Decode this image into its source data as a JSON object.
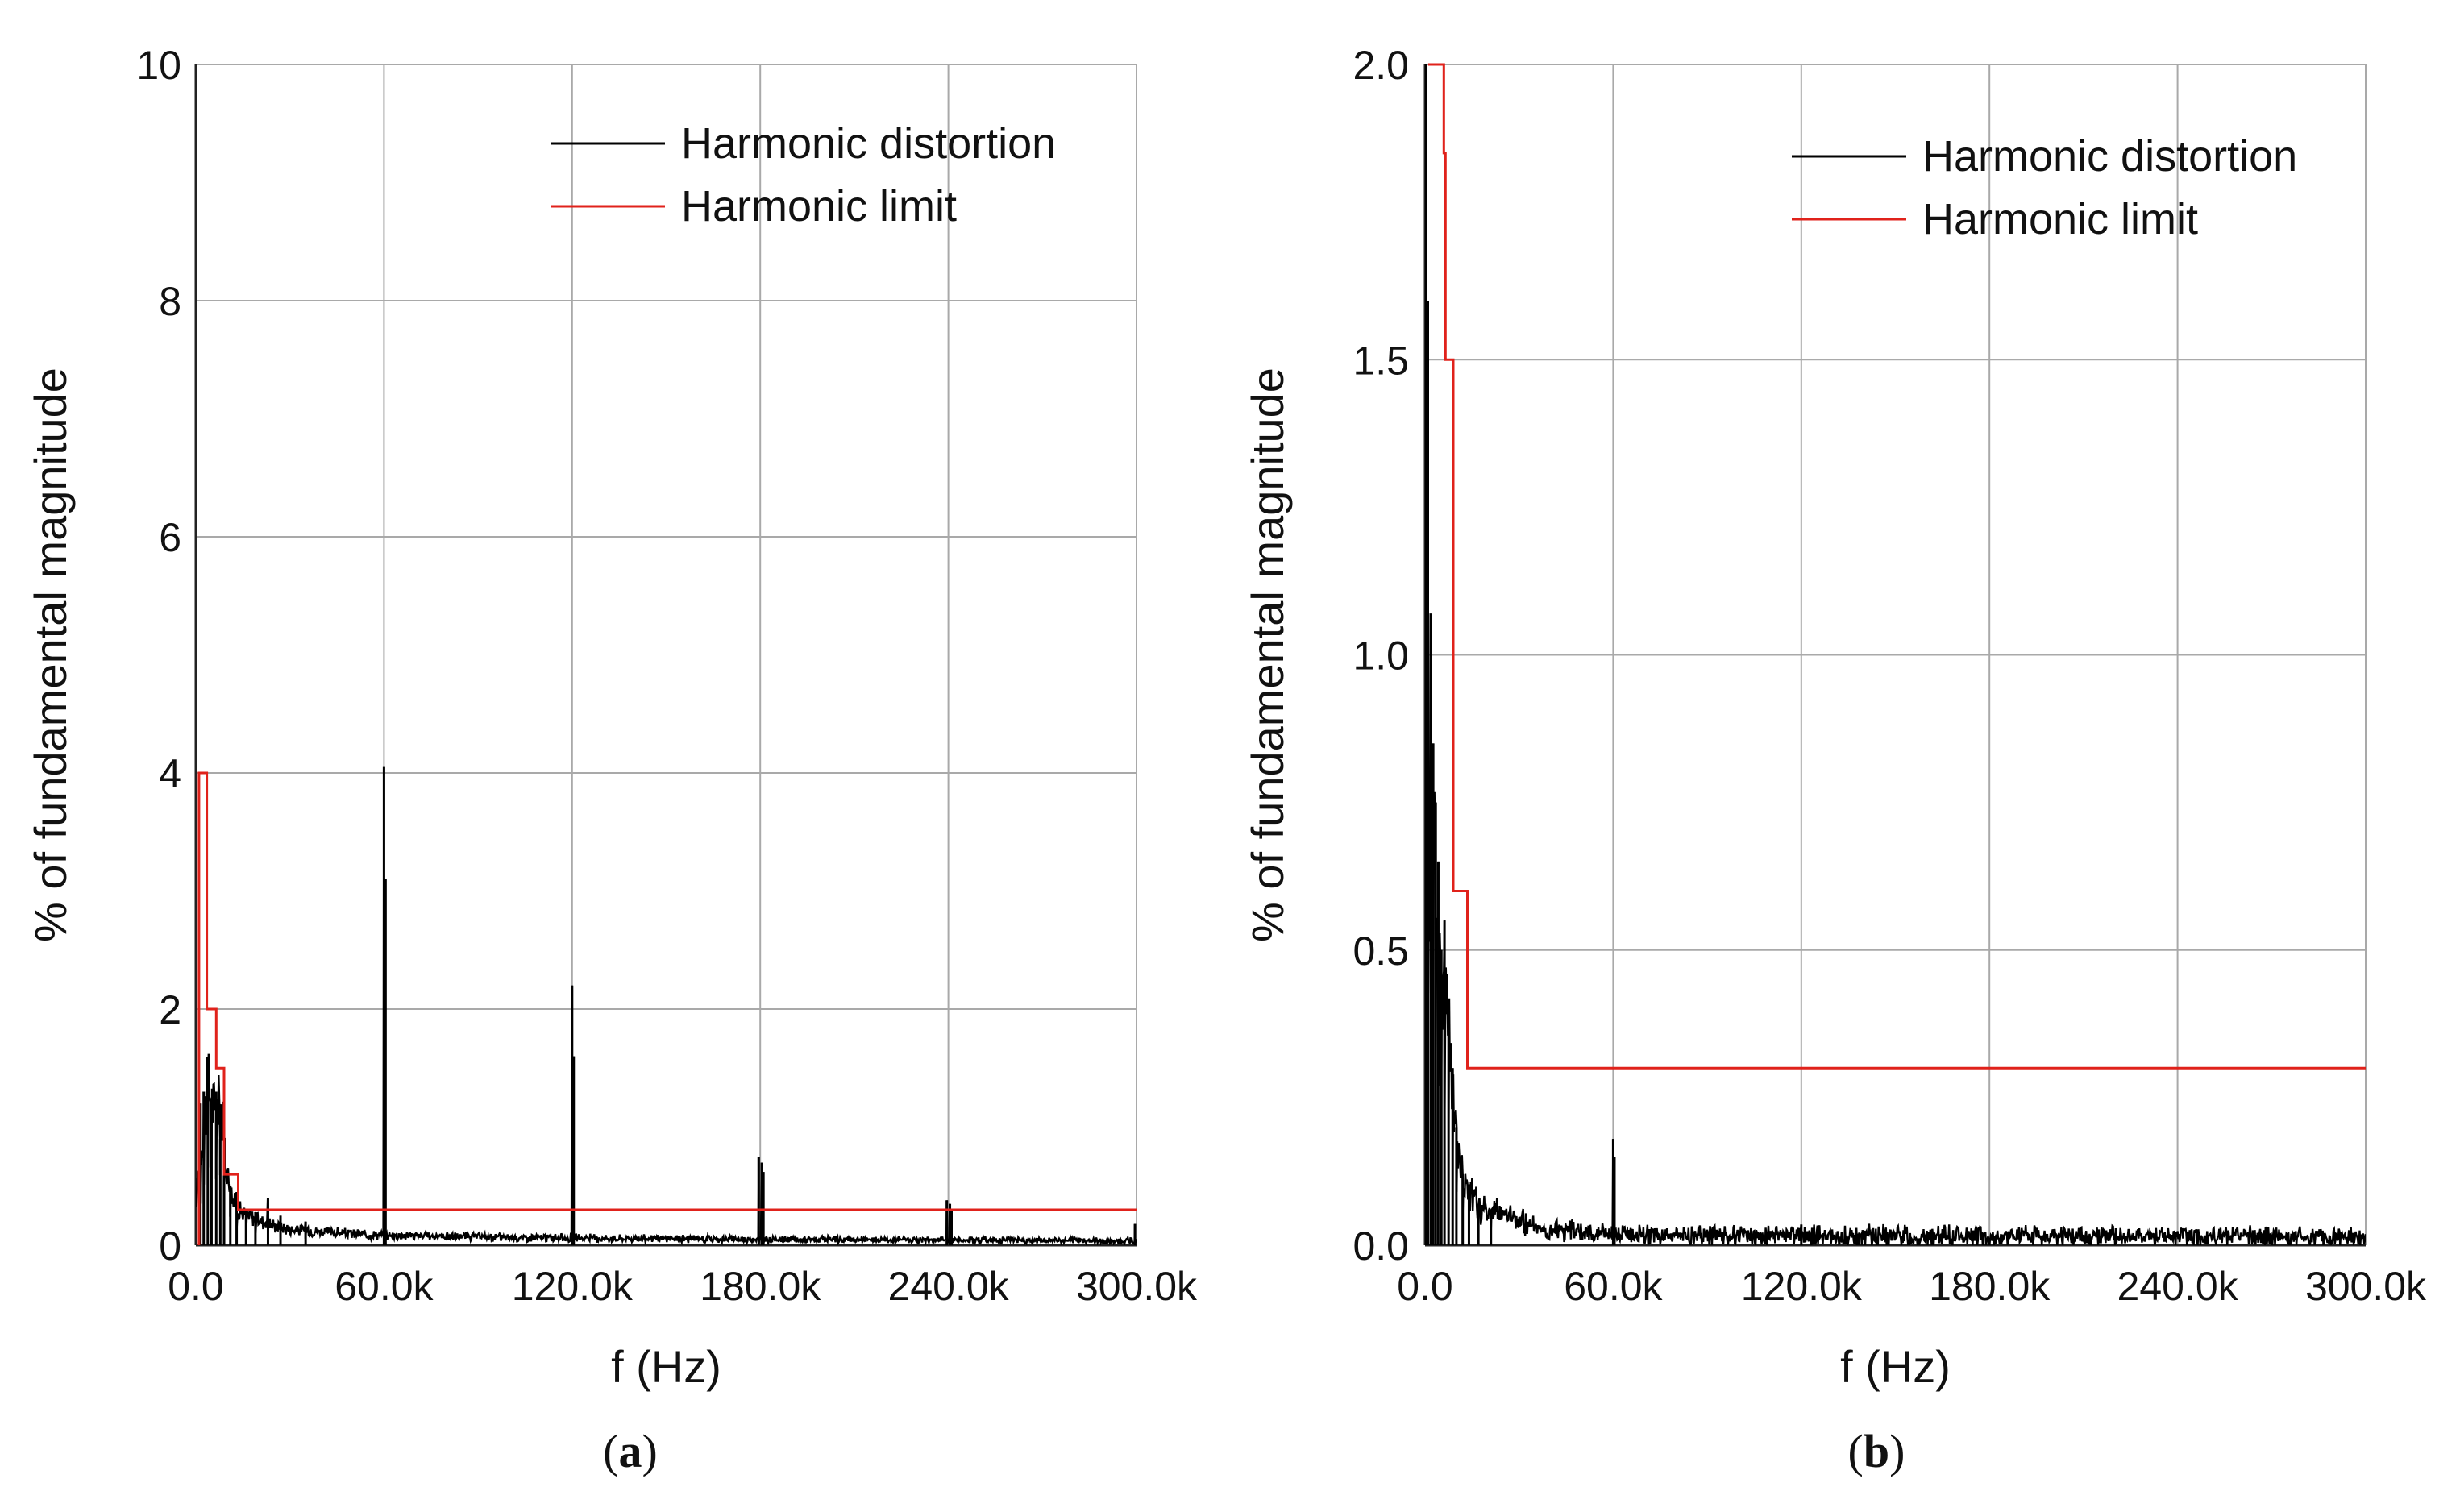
{
  "chart_data": [
    {
      "type": "line",
      "panel_label": "a",
      "xlabel": "f (Hz)",
      "ylabel": "% of fundamental magnitude",
      "xlim": [
        0,
        300000
      ],
      "ylim": [
        0,
        10
      ],
      "x_ticks": [
        {
          "value": 0,
          "label": "0.0"
        },
        {
          "value": 60000,
          "label": "60.0k"
        },
        {
          "value": 120000,
          "label": "120.0k"
        },
        {
          "value": 180000,
          "label": "180.0k"
        },
        {
          "value": 240000,
          "label": "240.0k"
        },
        {
          "value": 300000,
          "label": "300.0k"
        }
      ],
      "y_ticks": [
        {
          "value": 0,
          "label": "0"
        },
        {
          "value": 2,
          "label": "2"
        },
        {
          "value": 4,
          "label": "4"
        },
        {
          "value": 6,
          "label": "6"
        },
        {
          "value": 8,
          "label": "8"
        },
        {
          "value": 10,
          "label": "10"
        }
      ],
      "grid": true,
      "legend_position": "top-right",
      "series": [
        {
          "name": "Harmonic distortion",
          "color": "#000000",
          "style": "spectrum",
          "baseline": [
            [
              0,
              0.35
            ],
            [
              2000,
              0.9
            ],
            [
              4000,
              1.35
            ],
            [
              6000,
              1.1
            ],
            [
              8000,
              1.2
            ],
            [
              10000,
              0.6
            ],
            [
              12000,
              0.35
            ],
            [
              15000,
              0.25
            ],
            [
              20000,
              0.2
            ],
            [
              25000,
              0.15
            ],
            [
              30000,
              0.12
            ],
            [
              40000,
              0.1
            ],
            [
              50000,
              0.08
            ],
            [
              60000,
              0.07
            ],
            [
              100000,
              0.05
            ],
            [
              150000,
              0.04
            ],
            [
              200000,
              0.03
            ],
            [
              250000,
              0.03
            ],
            [
              300000,
              0.02
            ]
          ],
          "noise_amplitude": 0.08,
          "peaks": [
            [
              1200,
              1.2
            ],
            [
              2500,
              1.3
            ],
            [
              3800,
              1.35
            ],
            [
              5000,
              1.2
            ],
            [
              6500,
              1.3
            ],
            [
              7800,
              0.9
            ],
            [
              9000,
              1.0
            ],
            [
              11000,
              0.5
            ],
            [
              13000,
              0.45
            ],
            [
              16000,
              0.3
            ],
            [
              19000,
              0.28
            ],
            [
              23000,
              0.4
            ],
            [
              27000,
              0.25
            ],
            [
              35000,
              0.2
            ],
            [
              60000,
              4.05
            ],
            [
              60500,
              3.1
            ],
            [
              120000,
              2.2
            ],
            [
              120500,
              1.6
            ],
            [
              179500,
              0.75
            ],
            [
              180500,
              0.7
            ],
            [
              181000,
              0.62
            ],
            [
              239500,
              0.38
            ],
            [
              240500,
              0.35
            ],
            [
              241000,
              0.3
            ],
            [
              299500,
              0.18
            ]
          ]
        },
        {
          "name": "Harmonic limit",
          "color": "#e0221b",
          "style": "step",
          "points": [
            [
              1000,
              0
            ],
            [
              1000,
              4.0
            ],
            [
              3500,
              4.0
            ],
            [
              3500,
              2.0
            ],
            [
              6500,
              2.0
            ],
            [
              6500,
              1.5
            ],
            [
              9000,
              1.5
            ],
            [
              9000,
              0.6
            ],
            [
              13500,
              0.6
            ],
            [
              13500,
              0.3
            ],
            [
              300000,
              0.3
            ]
          ]
        }
      ]
    },
    {
      "type": "line",
      "panel_label": "b",
      "xlabel": "f (Hz)",
      "ylabel": "% of fundamental magnitude",
      "xlim": [
        0,
        300000
      ],
      "ylim": [
        0,
        2
      ],
      "x_ticks": [
        {
          "value": 0,
          "label": "0.0"
        },
        {
          "value": 60000,
          "label": "60.0k"
        },
        {
          "value": 120000,
          "label": "120.0k"
        },
        {
          "value": 180000,
          "label": "180.0k"
        },
        {
          "value": 240000,
          "label": "240.0k"
        },
        {
          "value": 300000,
          "label": "300.0k"
        }
      ],
      "y_ticks": [
        {
          "value": 0,
          "label": "0.0"
        },
        {
          "value": 0.5,
          "label": "0.5"
        },
        {
          "value": 1,
          "label": "1.0"
        },
        {
          "value": 1.5,
          "label": "1.5"
        },
        {
          "value": 2,
          "label": "2.0"
        }
      ],
      "grid": true,
      "legend_position": "top-right",
      "series": [
        {
          "name": "Harmonic distortion",
          "color": "#000000",
          "style": "spectrum",
          "baseline": [
            [
              0,
              0.3
            ],
            [
              1500,
              0.6
            ],
            [
              3000,
              0.7
            ],
            [
              5000,
              0.45
            ],
            [
              7000,
              0.4
            ],
            [
              9000,
              0.25
            ],
            [
              11000,
              0.12
            ],
            [
              14000,
              0.08
            ],
            [
              18000,
              0.05
            ],
            [
              25000,
              0.04
            ],
            [
              35000,
              0.02
            ],
            [
              50000,
              0.01
            ],
            [
              80000,
              0.005
            ],
            [
              150000,
              0.003
            ],
            [
              300000,
              0.002
            ]
          ],
          "noise_amplitude": 0.06,
          "peaks": [
            [
              300,
              2.0
            ],
            [
              900,
              1.6
            ],
            [
              1800,
              1.07
            ],
            [
              2600,
              0.85
            ],
            [
              3400,
              0.75
            ],
            [
              4200,
              0.65
            ],
            [
              5200,
              0.5
            ],
            [
              6200,
              0.55
            ],
            [
              7500,
              0.4
            ],
            [
              8800,
              0.3
            ],
            [
              10000,
              0.2
            ],
            [
              12000,
              0.12
            ],
            [
              14000,
              0.1
            ],
            [
              17000,
              0.07
            ],
            [
              21000,
              0.05
            ],
            [
              60000,
              0.18
            ],
            [
              60400,
              0.15
            ],
            [
              120000,
              0.035
            ],
            [
              180000,
              0.01
            ]
          ]
        },
        {
          "name": "Harmonic limit",
          "color": "#e0221b",
          "style": "step",
          "points": [
            [
              1000,
              2.0
            ],
            [
              6000,
              2.0
            ],
            [
              6000,
              1.85
            ],
            [
              6500,
              1.85
            ],
            [
              6500,
              1.5
            ],
            [
              9000,
              1.5
            ],
            [
              9000,
              0.6
            ],
            [
              13500,
              0.6
            ],
            [
              13500,
              0.3
            ],
            [
              300000,
              0.3
            ]
          ]
        }
      ]
    }
  ]
}
